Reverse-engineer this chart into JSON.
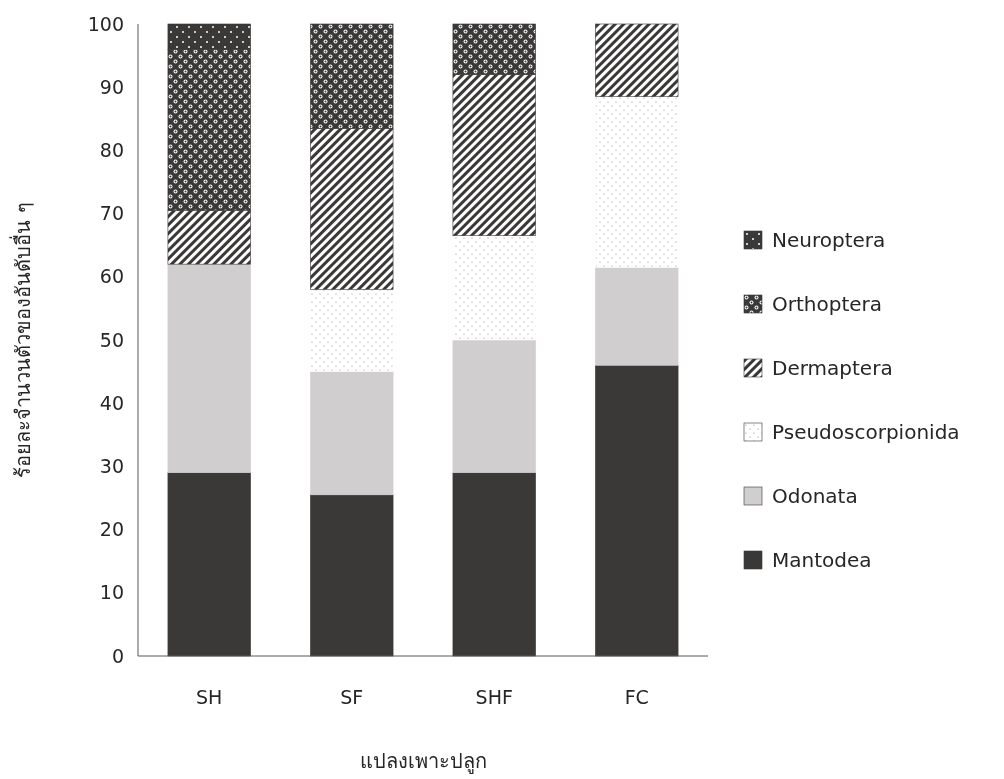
{
  "chart_data": {
    "type": "bar",
    "stacked": true,
    "xlabel": "แปลงเพาะปลูก",
    "ylabel": "ร้อยละจำนวนตัวของอันดับอื่น ๆ",
    "categories": [
      "SH",
      "SF",
      "SHF",
      "FC"
    ],
    "ylim": [
      0,
      100
    ],
    "yticks": [
      0,
      10,
      20,
      30,
      40,
      50,
      60,
      70,
      80,
      90,
      100
    ],
    "grid": false,
    "legend": "right",
    "series": [
      {
        "name": "Mantodea",
        "color": "#3b3838",
        "values": [
          29,
          25.5,
          29,
          46
        ]
      },
      {
        "name": "Odonata",
        "color": "#d0cece",
        "values": [
          33,
          19.5,
          21,
          15.5
        ]
      },
      {
        "name": "Pseudoscorpionida",
        "color": "#ffffff",
        "values": [
          0,
          13,
          16.5,
          27
        ]
      },
      {
        "name": "Dermaptera",
        "color": "#3b3838",
        "values": [
          8.5,
          25.5,
          25.5,
          11.5
        ]
      },
      {
        "name": "Orthoptera",
        "color": "#3b3838",
        "values": [
          25.5,
          16.5,
          8,
          0
        ]
      },
      {
        "name": "Neuroptera",
        "color": "#3b3838",
        "values": [
          4,
          0,
          0,
          0
        ]
      }
    ]
  }
}
